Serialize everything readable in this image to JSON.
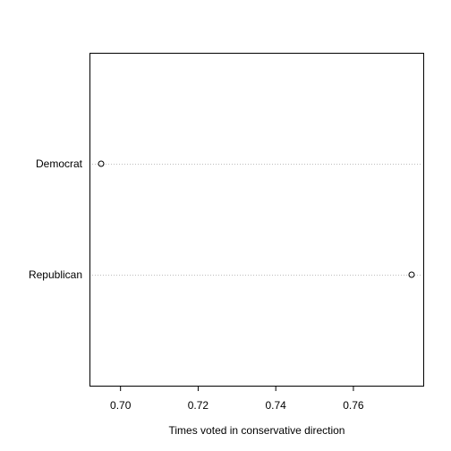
{
  "chart_data": {
    "type": "scatter",
    "subtype": "dotchart",
    "title": "",
    "xlabel": "Times voted in conservative direction",
    "ylabel": "",
    "categories": [
      "Democrat",
      "Republican"
    ],
    "values": [
      0.695,
      0.775
    ],
    "xlim": [
      0.692,
      0.778
    ],
    "xticks": [
      0.7,
      0.72,
      0.74,
      0.76
    ],
    "xtick_labels": [
      "0.70",
      "0.72",
      "0.74",
      "0.76"
    ],
    "grid": "dotted horizontal guide lines per category",
    "marker": "open circle",
    "colors": {
      "points": "#000000",
      "guides": "#bebebe",
      "frame": "#000000"
    }
  }
}
